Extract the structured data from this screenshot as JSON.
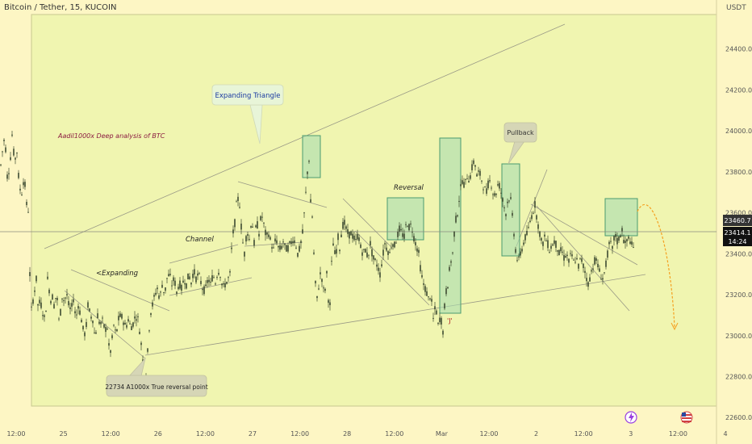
{
  "header": {
    "symbol": "Bitcoin / Tether, 15, KUCOIN",
    "currency": "USDT"
  },
  "colors": {
    "background": "#fdf6c4",
    "zone": "#f0f5b0",
    "candle": "#3d4a30",
    "box_fill": "#a8dcb0",
    "box_stroke": "#4a9a70",
    "projection": "#f5a020",
    "crosshair": "#8a8a80"
  },
  "chart_data": {
    "type": "candlestick",
    "y_ticks": [
      22600.0,
      22800.0,
      23000.0,
      23200.0,
      23400.0,
      23600.0,
      23800.0,
      24000.0,
      24200.0,
      24400.0
    ],
    "ylim": [
      22530,
      24600
    ],
    "x_ticks": [
      "12:00",
      "25",
      "12:00",
      "26",
      "12:00",
      "27",
      "12:00",
      "28",
      "12:00",
      "Mar",
      "12:00",
      "2",
      "12:00",
      "3",
      "12:00",
      "4"
    ],
    "price_path": [
      [
        0,
        23800
      ],
      [
        3,
        23900
      ],
      [
        6,
        23980
      ],
      [
        9,
        23780
      ],
      [
        12,
        23820
      ],
      [
        15,
        23980
      ],
      [
        18,
        23850
      ],
      [
        21,
        23900
      ],
      [
        24,
        23720
      ],
      [
        27,
        23700
      ],
      [
        30,
        23780
      ],
      [
        33,
        23640
      ],
      [
        36,
        23600
      ],
      [
        38,
        23000
      ],
      [
        40,
        23250
      ],
      [
        42,
        23100
      ],
      [
        44,
        23350
      ],
      [
        46,
        23200
      ],
      [
        48,
        23100
      ],
      [
        50,
        23220
      ],
      [
        52,
        23080
      ],
      [
        54,
        23150
      ],
      [
        56,
        23020
      ],
      [
        58,
        23250
      ],
      [
        60,
        23300
      ],
      [
        62,
        23150
      ],
      [
        64,
        23200
      ],
      [
        66,
        23180
      ],
      [
        68,
        23120
      ],
      [
        70,
        23250
      ],
      [
        72,
        23100
      ],
      [
        74,
        23050
      ],
      [
        76,
        23180
      ],
      [
        78,
        23200
      ],
      [
        80,
        23150
      ],
      [
        82,
        23220
      ],
      [
        85,
        23150
      ],
      [
        88,
        23120
      ],
      [
        91,
        23180
      ],
      [
        94,
        23080
      ],
      [
        97,
        23150
      ],
      [
        100,
        23100
      ],
      [
        103,
        23030
      ],
      [
        106,
        23000
      ],
      [
        109,
        23150
      ],
      [
        112,
        23100
      ],
      [
        115,
        23080
      ],
      [
        118,
        22980
      ],
      [
        121,
        23100
      ],
      [
        124,
        23050
      ],
      [
        127,
        23070
      ],
      [
        130,
        23030
      ],
      [
        133,
        23040
      ],
      [
        136,
        22900
      ],
      [
        138,
        22950
      ],
      [
        141,
        23050
      ],
      [
        144,
        23000
      ],
      [
        147,
        23080
      ],
      [
        150,
        23100
      ],
      [
        153,
        23070
      ],
      [
        156,
        23040
      ],
      [
        159,
        23080
      ],
      [
        162,
        23040
      ],
      [
        165,
        23060
      ],
      [
        168,
        23100
      ],
      [
        171,
        23080
      ],
      [
        174,
        23000
      ],
      [
        177,
        22880
      ],
      [
        180,
        22760
      ],
      [
        183,
        22920
      ],
      [
        186,
        23100
      ],
      [
        189,
        23150
      ],
      [
        192,
        23200
      ],
      [
        195,
        23230
      ],
      [
        198,
        23180
      ],
      [
        201,
        23250
      ],
      [
        204,
        23200
      ],
      [
        207,
        23280
      ],
      [
        210,
        23300
      ],
      [
        213,
        23250
      ],
      [
        216,
        23280
      ],
      [
        219,
        23210
      ],
      [
        222,
        23260
      ],
      [
        225,
        23230
      ],
      [
        228,
        23280
      ],
      [
        231,
        23250
      ],
      [
        234,
        23300
      ],
      [
        237,
        23260
      ],
      [
        240,
        23320
      ],
      [
        243,
        23280
      ],
      [
        246,
        23300
      ],
      [
        249,
        23260
      ],
      [
        252,
        23220
      ],
      [
        255,
        23230
      ],
      [
        258,
        23280
      ],
      [
        261,
        23250
      ],
      [
        264,
        23300
      ],
      [
        267,
        23260
      ],
      [
        270,
        23320
      ],
      [
        273,
        23300
      ],
      [
        276,
        23230
      ],
      [
        279,
        23250
      ],
      [
        282,
        23270
      ],
      [
        285,
        23300
      ],
      [
        288,
        23480
      ],
      [
        291,
        23550
      ],
      [
        294,
        23680
      ],
      [
        297,
        23640
      ],
      [
        300,
        23480
      ],
      [
        303,
        23400
      ],
      [
        306,
        23520
      ],
      [
        309,
        23470
      ],
      [
        312,
        23580
      ],
      [
        315,
        23450
      ],
      [
        318,
        23560
      ],
      [
        321,
        23500
      ],
      [
        324,
        23600
      ],
      [
        327,
        23540
      ],
      [
        330,
        23480
      ],
      [
        333,
        23500
      ],
      [
        336,
        23450
      ],
      [
        339,
        23420
      ],
      [
        342,
        23480
      ],
      [
        345,
        23430
      ],
      [
        348,
        23420
      ],
      [
        351,
        23460
      ],
      [
        354,
        23420
      ],
      [
        357,
        23430
      ],
      [
        360,
        23450
      ],
      [
        363,
        23470
      ],
      [
        366,
        23460
      ],
      [
        369,
        23400
      ],
      [
        372,
        23430
      ],
      [
        375,
        23500
      ],
      [
        378,
        23640
      ],
      [
        381,
        23800
      ],
      [
        383,
        23860
      ],
      [
        385,
        23650
      ],
      [
        387,
        23580
      ],
      [
        389,
        23400
      ],
      [
        391,
        23250
      ],
      [
        393,
        23180
      ],
      [
        395,
        23240
      ],
      [
        397,
        23300
      ],
      [
        399,
        23280
      ],
      [
        401,
        23220
      ],
      [
        403,
        23230
      ],
      [
        405,
        23300
      ],
      [
        407,
        23180
      ],
      [
        409,
        23150
      ],
      [
        411,
        23350
      ],
      [
        413,
        23450
      ],
      [
        415,
        23400
      ],
      [
        417,
        23420
      ],
      [
        419,
        23480
      ],
      [
        421,
        23430
      ],
      [
        423,
        23500
      ],
      [
        426,
        23560
      ],
      [
        429,
        23520
      ],
      [
        432,
        23490
      ],
      [
        435,
        23500
      ],
      [
        438,
        23480
      ],
      [
        441,
        23460
      ],
      [
        444,
        23500
      ],
      [
        447,
        23430
      ],
      [
        450,
        23400
      ],
      [
        453,
        23420
      ],
      [
        456,
        23380
      ],
      [
        459,
        23450
      ],
      [
        462,
        23380
      ],
      [
        465,
        23360
      ],
      [
        468,
        23340
      ],
      [
        471,
        23300
      ],
      [
        474,
        23380
      ],
      [
        477,
        23450
      ],
      [
        480,
        23420
      ],
      [
        483,
        23400
      ],
      [
        486,
        23460
      ],
      [
        489,
        23440
      ],
      [
        492,
        23480
      ],
      [
        495,
        23520
      ],
      [
        498,
        23500
      ],
      [
        501,
        23480
      ],
      [
        504,
        23560
      ],
      [
        507,
        23530
      ],
      [
        510,
        23540
      ],
      [
        513,
        23480
      ],
      [
        516,
        23440
      ],
      [
        519,
        23400
      ],
      [
        522,
        23300
      ],
      [
        525,
        23250
      ],
      [
        528,
        23220
      ],
      [
        531,
        23180
      ],
      [
        534,
        23200
      ],
      [
        537,
        23080
      ],
      [
        540,
        23150
      ],
      [
        543,
        23050
      ],
      [
        546,
        23100
      ],
      [
        549,
        23020
      ],
      [
        552,
        23200
      ],
      [
        555,
        23250
      ],
      [
        558,
        23350
      ],
      [
        561,
        23400
      ],
      [
        564,
        23550
      ],
      [
        567,
        23600
      ],
      [
        570,
        23700
      ],
      [
        573,
        23760
      ],
      [
        576,
        23730
      ],
      [
        579,
        23780
      ],
      [
        582,
        23760
      ],
      [
        585,
        23820
      ],
      [
        588,
        23860
      ],
      [
        591,
        23780
      ],
      [
        594,
        23800
      ],
      [
        597,
        23760
      ],
      [
        600,
        23720
      ],
      [
        603,
        23700
      ],
      [
        606,
        23760
      ],
      [
        609,
        23740
      ],
      [
        612,
        23680
      ],
      [
        615,
        23700
      ],
      [
        618,
        23750
      ],
      [
        621,
        23700
      ],
      [
        624,
        23640
      ],
      [
        627,
        23600
      ],
      [
        630,
        23680
      ],
      [
        633,
        23660
      ],
      [
        636,
        23540
      ],
      [
        639,
        23420
      ],
      [
        642,
        23350
      ],
      [
        645,
        23400
      ],
      [
        648,
        23440
      ],
      [
        651,
        23480
      ],
      [
        654,
        23500
      ],
      [
        657,
        23560
      ],
      [
        660,
        23600
      ],
      [
        663,
        23640
      ],
      [
        666,
        23560
      ],
      [
        669,
        23500
      ],
      [
        672,
        23440
      ],
      [
        675,
        23480
      ],
      [
        678,
        23460
      ],
      [
        681,
        23420
      ],
      [
        684,
        23440
      ],
      [
        687,
        23460
      ],
      [
        690,
        23440
      ],
      [
        693,
        23400
      ],
      [
        696,
        23420
      ],
      [
        699,
        23380
      ],
      [
        702,
        23400
      ],
      [
        705,
        23360
      ],
      [
        708,
        23400
      ],
      [
        711,
        23360
      ],
      [
        714,
        23380
      ],
      [
        717,
        23340
      ],
      [
        720,
        23380
      ],
      [
        723,
        23340
      ],
      [
        726,
        23300
      ],
      [
        729,
        23250
      ],
      [
        732,
        23300
      ],
      [
        735,
        23340
      ],
      [
        738,
        23380
      ],
      [
        741,
        23340
      ],
      [
        744,
        23300
      ],
      [
        747,
        23280
      ],
      [
        750,
        23320
      ],
      [
        753,
        23400
      ],
      [
        756,
        23460
      ],
      [
        759,
        23420
      ],
      [
        762,
        23500
      ],
      [
        765,
        23460
      ],
      [
        768,
        23480
      ],
      [
        771,
        23520
      ],
      [
        774,
        23440
      ],
      [
        777,
        23460
      ],
      [
        780,
        23480
      ],
      [
        783,
        23440
      ],
      [
        786,
        23420
      ]
    ],
    "last_price": "23460.7",
    "price_tag_2": "23414.1",
    "countdown": "14:24"
  },
  "annotations": {
    "title": "Aadil1000x Deep analysis of BTC",
    "expanding_triangle": "Expanding Triangle",
    "expanding": "<Expanding",
    "channel": "Channel",
    "reversal": "Reversal",
    "pullback": "Pullback",
    "j_mark": "'J'",
    "reversal_point": "22734 A1000x True reversal point"
  },
  "icons": {
    "event_1": "lightning-icon",
    "event_2": "us-flag-icon"
  }
}
